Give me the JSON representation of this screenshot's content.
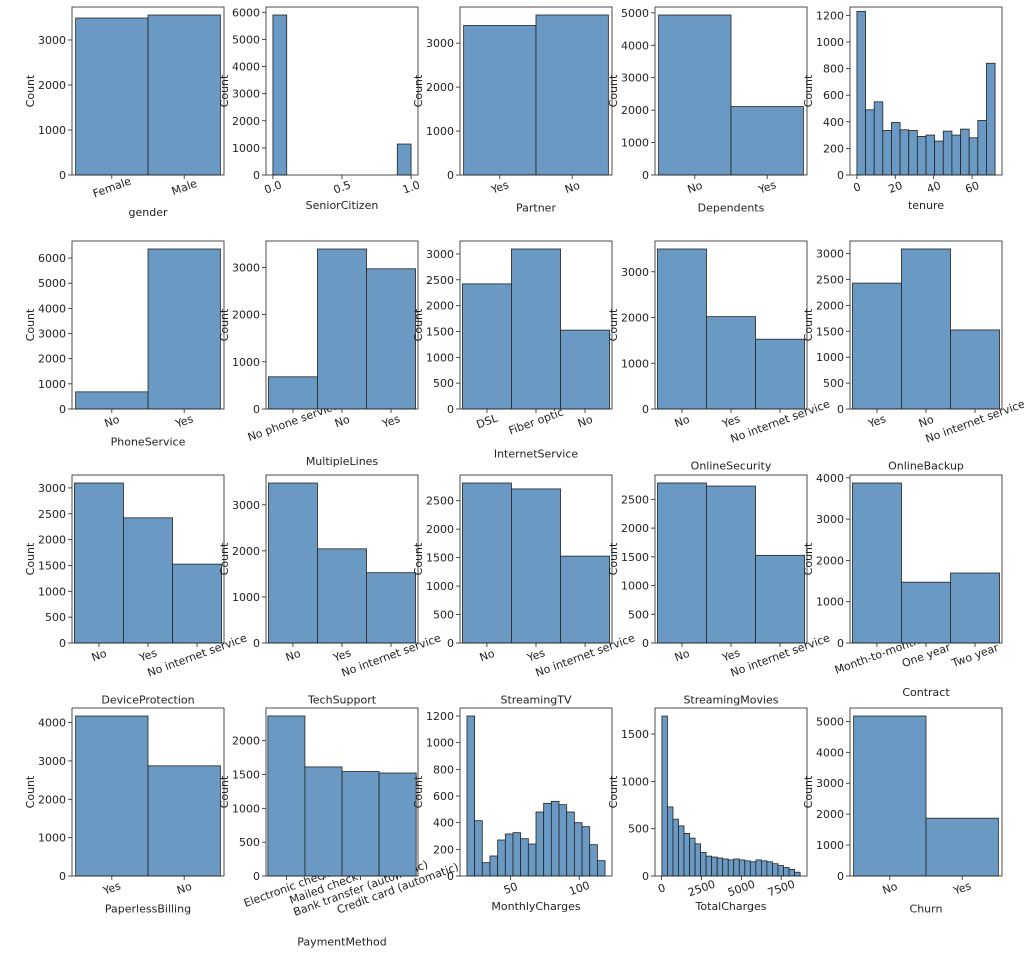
{
  "chart_data": [
    {
      "type": "bar",
      "xlabel": "gender",
      "ylabel": "Count",
      "color": "#6a9ac4",
      "categories": [
        "Female",
        "Male"
      ],
      "values": [
        3488,
        3555
      ],
      "ylim": [
        0,
        3733
      ],
      "yticks": [
        0,
        1000,
        2000,
        3000
      ]
    },
    {
      "type": "histogram",
      "xlabel": "SeniorCitizen",
      "ylabel": "Count",
      "color": "#6a9ac4",
      "bins": [
        0,
        0.1,
        0.2,
        0.3,
        0.4,
        0.5,
        0.6,
        0.7,
        0.8,
        0.9,
        1.0
      ],
      "values": [
        5901,
        0,
        0,
        0,
        0,
        0,
        0,
        0,
        0,
        1142
      ],
      "xlim": [
        -0.05,
        1.05
      ],
      "xticks": [
        {
          "value": 0,
          "label": "0.0"
        },
        {
          "value": 0.5,
          "label": "0.5"
        },
        {
          "value": 1,
          "label": "1.0"
        }
      ],
      "ylim": [
        0,
        6196
      ],
      "yticks": [
        0,
        1000,
        2000,
        3000,
        4000,
        5000,
        6000
      ]
    },
    {
      "type": "bar",
      "xlabel": "Partner",
      "ylabel": "Count",
      "color": "#6a9ac4",
      "categories": [
        "Yes",
        "No"
      ],
      "values": [
        3402,
        3641
      ],
      "ylim": [
        0,
        3823
      ],
      "yticks": [
        0,
        1000,
        2000,
        3000
      ]
    },
    {
      "type": "bar",
      "xlabel": "Dependents",
      "ylabel": "Count",
      "color": "#6a9ac4",
      "categories": [
        "No",
        "Yes"
      ],
      "values": [
        4933,
        2110
      ],
      "ylim": [
        0,
        5180
      ],
      "yticks": [
        0,
        1000,
        2000,
        3000,
        4000,
        5000
      ]
    },
    {
      "type": "histogram",
      "xlabel": "tenure",
      "ylabel": "Count",
      "color": "#6a9ac4",
      "bins": [
        0,
        4.5,
        9,
        13.5,
        18,
        22.5,
        27,
        31.5,
        36,
        40.5,
        45,
        49.5,
        54,
        58.5,
        63,
        67.5,
        72
      ],
      "values": [
        1230,
        490,
        550,
        335,
        395,
        340,
        335,
        290,
        300,
        255,
        330,
        300,
        345,
        280,
        410,
        840
      ],
      "xlim": [
        -3.6,
        75.6
      ],
      "xticks": [
        0,
        20,
        40,
        60
      ],
      "ylim": [
        0,
        1263
      ],
      "yticks": [
        0,
        200,
        400,
        600,
        800,
        1000,
        1200
      ]
    },
    {
      "type": "bar",
      "xlabel": "PhoneService",
      "ylabel": "Count",
      "color": "#6a9ac4",
      "categories": [
        "No",
        "Yes"
      ],
      "values": [
        682,
        6361
      ],
      "ylim": [
        0,
        6679
      ],
      "yticks": [
        0,
        1000,
        2000,
        3000,
        4000,
        5000,
        6000
      ]
    },
    {
      "type": "bar",
      "xlabel": "MultipleLines",
      "ylabel": "Count",
      "color": "#6a9ac4",
      "categories": [
        "No phone service",
        "No",
        "Yes"
      ],
      "values": [
        682,
        3390,
        2971
      ],
      "ylim": [
        0,
        3560
      ],
      "yticks": [
        0,
        1000,
        2000,
        3000
      ]
    },
    {
      "type": "bar",
      "xlabel": "InternetService",
      "ylabel": "Count",
      "color": "#6a9ac4",
      "categories": [
        "DSL",
        "Fiber optic",
        "No"
      ],
      "values": [
        2421,
        3096,
        1526
      ],
      "ylim": [
        0,
        3251
      ],
      "yticks": [
        0,
        500,
        1000,
        1500,
        2000,
        2500,
        3000
      ]
    },
    {
      "type": "bar",
      "xlabel": "OnlineSecurity",
      "ylabel": "Count",
      "color": "#6a9ac4",
      "categories": [
        "No",
        "Yes",
        "No internet service"
      ],
      "values": [
        3498,
        2019,
        1526
      ],
      "ylim": [
        0,
        3673
      ],
      "yticks": [
        0,
        1000,
        2000,
        3000
      ]
    },
    {
      "type": "bar",
      "xlabel": "OnlineBackup",
      "ylabel": "Count",
      "color": "#6a9ac4",
      "categories": [
        "Yes",
        "No",
        "No internet service"
      ],
      "values": [
        2429,
        3088,
        1526
      ],
      "ylim": [
        0,
        3242
      ],
      "yticks": [
        0,
        500,
        1000,
        1500,
        2000,
        2500,
        3000
      ]
    },
    {
      "type": "bar",
      "xlabel": "DeviceProtection",
      "ylabel": "Count",
      "color": "#6a9ac4",
      "categories": [
        "No",
        "Yes",
        "No internet service"
      ],
      "values": [
        3095,
        2422,
        1526
      ],
      "ylim": [
        0,
        3250
      ],
      "yticks": [
        0,
        500,
        1000,
        1500,
        2000,
        2500,
        3000
      ]
    },
    {
      "type": "bar",
      "xlabel": "TechSupport",
      "ylabel": "Count",
      "color": "#6a9ac4",
      "categories": [
        "No",
        "Yes",
        "No internet service"
      ],
      "values": [
        3473,
        2044,
        1526
      ],
      "ylim": [
        0,
        3647
      ],
      "yticks": [
        0,
        1000,
        2000,
        3000
      ]
    },
    {
      "type": "bar",
      "xlabel": "StreamingTV",
      "ylabel": "Count",
      "color": "#6a9ac4",
      "categories": [
        "No",
        "Yes",
        "No internet service"
      ],
      "values": [
        2810,
        2707,
        1526
      ],
      "ylim": [
        0,
        2951
      ],
      "yticks": [
        0,
        500,
        1000,
        1500,
        2000,
        2500
      ]
    },
    {
      "type": "bar",
      "xlabel": "StreamingMovies",
      "ylabel": "Count",
      "color": "#6a9ac4",
      "categories": [
        "No",
        "Yes",
        "No internet service"
      ],
      "values": [
        2785,
        2732,
        1526
      ],
      "ylim": [
        0,
        2924
      ],
      "yticks": [
        0,
        500,
        1000,
        1500,
        2000,
        2500
      ]
    },
    {
      "type": "bar",
      "xlabel": "Contract",
      "ylabel": "Count",
      "color": "#6a9ac4",
      "categories": [
        "Month-to-month",
        "One year",
        "Two year"
      ],
      "values": [
        3875,
        1473,
        1695
      ],
      "ylim": [
        0,
        4069
      ],
      "yticks": [
        0,
        1000,
        2000,
        3000,
        4000
      ]
    },
    {
      "type": "bar",
      "xlabel": "PaperlessBilling",
      "ylabel": "Count",
      "color": "#6a9ac4",
      "categories": [
        "Yes",
        "No"
      ],
      "values": [
        4171,
        2872
      ],
      "ylim": [
        0,
        4380
      ],
      "yticks": [
        0,
        1000,
        2000,
        3000,
        4000
      ]
    },
    {
      "type": "bar",
      "xlabel": "PaymentMethod",
      "ylabel": "Count",
      "color": "#6a9ac4",
      "categories": [
        "Electronic check",
        "Mailed check",
        "Bank transfer (automatic)",
        "Credit card (automatic)"
      ],
      "values": [
        2365,
        1612,
        1544,
        1522
      ],
      "ylim": [
        0,
        2483
      ],
      "yticks": [
        0,
        500,
        1000,
        1500,
        2000
      ]
    },
    {
      "type": "histogram",
      "xlabel": "MonthlyCharges",
      "ylabel": "Count",
      "color": "#6a9ac4",
      "bins": [
        18.25,
        23.83,
        29.42,
        35.0,
        40.58,
        46.17,
        51.75,
        57.33,
        62.92,
        68.5,
        74.08,
        79.67,
        85.25,
        90.83,
        96.42,
        102.0,
        107.58,
        113.17,
        118.75
      ],
      "values": [
        1200,
        415,
        100,
        150,
        270,
        315,
        325,
        280,
        240,
        480,
        545,
        560,
        535,
        480,
        400,
        370,
        235,
        115
      ],
      "xlim": [
        13.2,
        123.8
      ],
      "xticks": [
        50,
        100
      ],
      "ylim": [
        0,
        1260
      ],
      "yticks": [
        0,
        200,
        400,
        600,
        800,
        1000,
        1200
      ]
    },
    {
      "type": "histogram",
      "xlabel": "TotalCharges",
      "ylabel": "Count",
      "color": "#6a9ac4",
      "bins": [
        18.8,
        365.44,
        712.08,
        1058.72,
        1405.36,
        1752.0,
        2098.64,
        2445.28,
        2791.92,
        3138.56,
        3485.2,
        3831.84,
        4178.48,
        4525.12,
        4871.76,
        5218.4,
        5565.04,
        5911.68,
        6258.32,
        6604.96,
        6951.6,
        7298.24,
        7644.88,
        7991.52,
        8338.16,
        8684.8
      ],
      "values": [
        1690,
        730,
        600,
        530,
        450,
        400,
        340,
        250,
        210,
        200,
        190,
        180,
        170,
        180,
        170,
        160,
        150,
        170,
        160,
        150,
        130,
        110,
        90,
        70,
        40
      ],
      "xlim": [
        -414,
        9118
      ],
      "xticks": [
        0,
        2500,
        5000,
        7500
      ],
      "ylim": [
        0,
        1775
      ],
      "yticks": [
        0,
        500,
        1000,
        1500
      ]
    },
    {
      "type": "bar",
      "xlabel": "Churn",
      "ylabel": "Count",
      "color": "#6a9ac4",
      "categories": [
        "No",
        "Yes"
      ],
      "values": [
        5174,
        1869
      ],
      "ylim": [
        0,
        5433
      ],
      "yticks": [
        0,
        1000,
        2000,
        3000,
        4000,
        5000
      ]
    }
  ]
}
